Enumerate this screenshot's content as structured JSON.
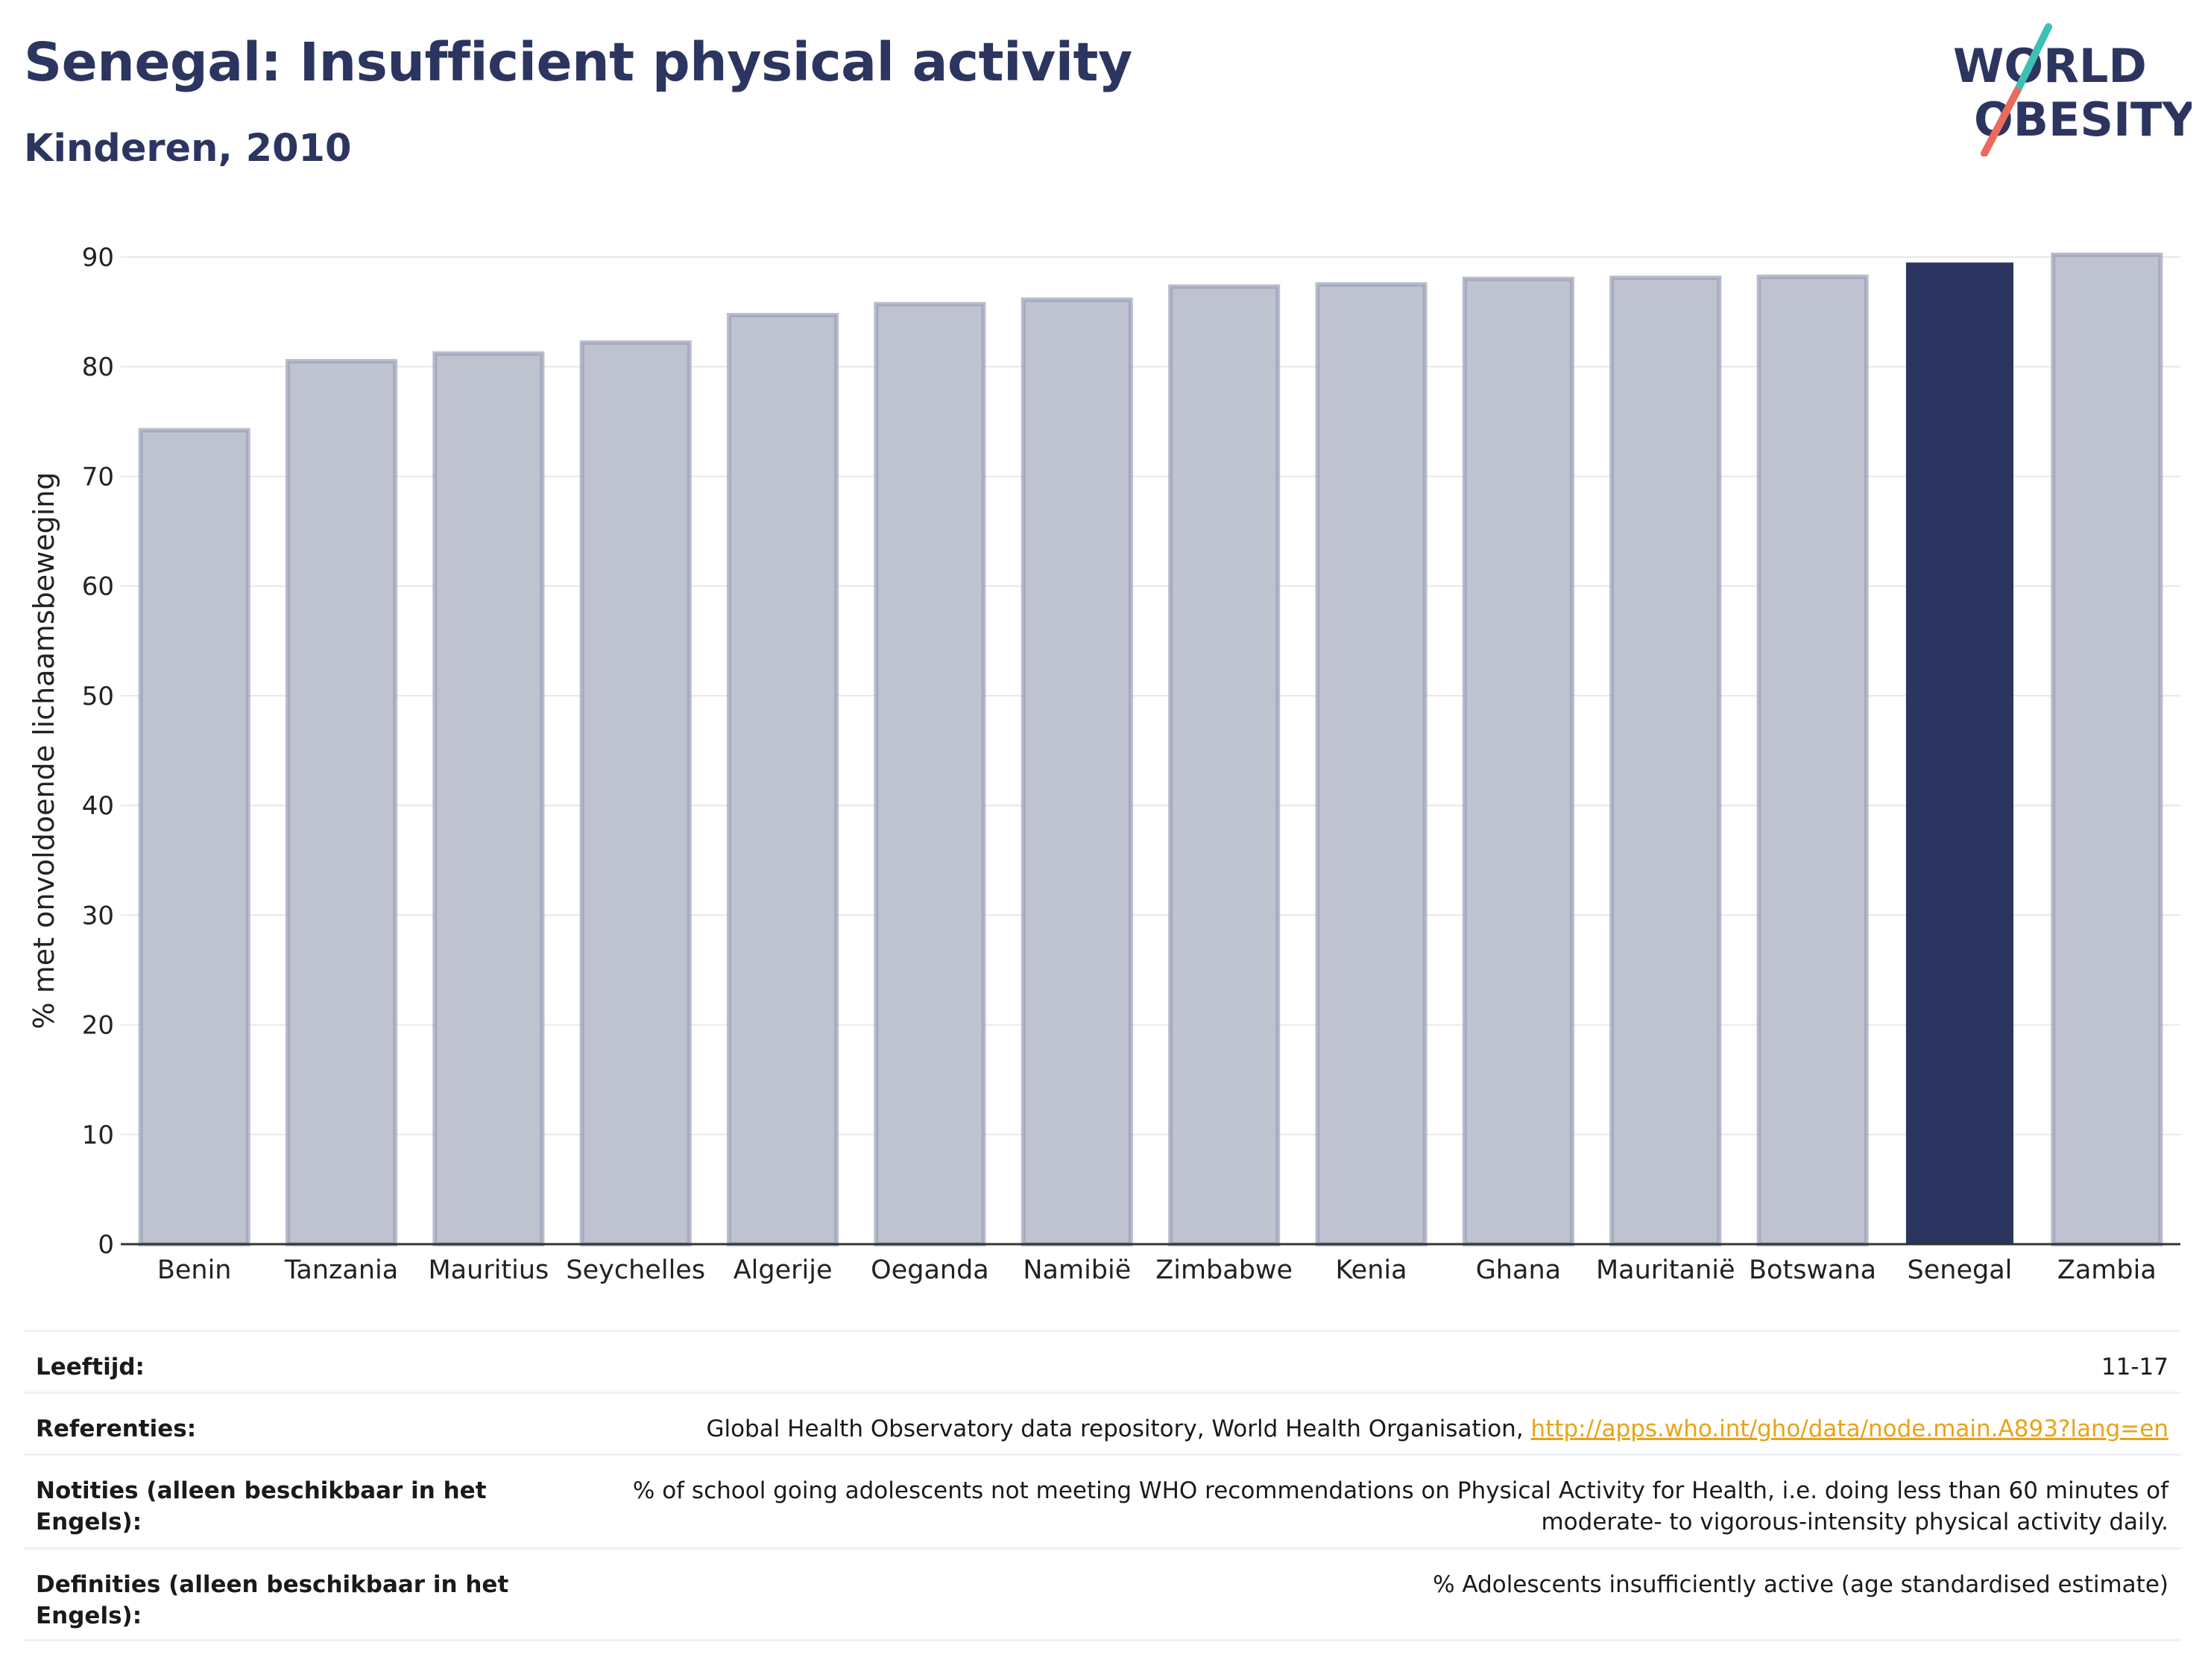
{
  "header": {
    "title": "Senegal: Insufficient physical activity",
    "subtitle": "Kinderen, 2010"
  },
  "logo": {
    "line1": "WORLD",
    "line2": "OBESITY",
    "text_color": "#2b3560",
    "slash_colors": [
      "#3ec1b5",
      "#ec6a5c"
    ]
  },
  "chart_data": {
    "type": "bar",
    "title": "Senegal: Insufficient physical activity",
    "subtitle": "Kinderen, 2010",
    "xlabel": "",
    "ylabel": "% met onvoldoende lichaamsbeweging",
    "ylim": [
      0,
      90
    ],
    "yticks": [
      0,
      10,
      20,
      30,
      40,
      50,
      60,
      70,
      80,
      90
    ],
    "grid": true,
    "categories": [
      "Benin",
      "Tanzania",
      "Mauritius",
      "Seychelles",
      "Algerije",
      "Oeganda",
      "Namibië",
      "Zimbabwe",
      "Kenia",
      "Ghana",
      "Mauritanië",
      "Botswana",
      "Senegal",
      "Zambia"
    ],
    "values": [
      74.2,
      80.5,
      81.2,
      82.2,
      84.7,
      85.7,
      86.1,
      87.3,
      87.5,
      88.0,
      88.1,
      88.2,
      89.5,
      90.2
    ],
    "highlight": "Senegal",
    "colors": {
      "bar": "#bfc3d0",
      "bar_edge": "#9aa0b8",
      "highlight": "#2b3560",
      "grid": "#e6e8ec",
      "axis": "#333333"
    }
  },
  "info": {
    "rows": [
      {
        "label": "Leeftijd:",
        "value": "11-17"
      },
      {
        "label": "Referenties:",
        "value": "Global Health Observatory data repository, World Health Organisation, ",
        "link": "http://apps.who.int/gho/data/node.main.A893?lang=en"
      },
      {
        "label": "Notities (alleen beschikbaar in het Engels):",
        "value": "% of school going adolescents not meeting WHO recommendations on Physical Activity for Health, i.e. doing less than 60 minutes of moderate- to vigorous-intensity physical activity daily."
      },
      {
        "label": "Definities (alleen beschikbaar in het Engels):",
        "value": "% Adolescents insufficiently active (age standardised estimate)"
      }
    ]
  }
}
